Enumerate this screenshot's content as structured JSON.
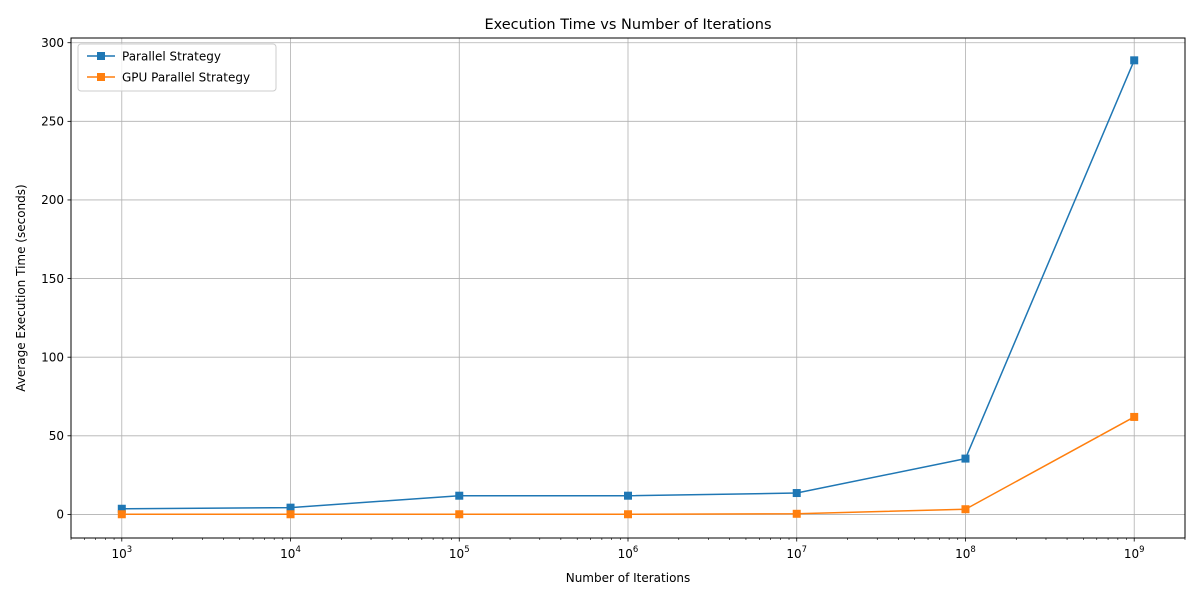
{
  "chart_data": {
    "type": "line",
    "title": "Execution Time vs Number of Iterations",
    "xlabel": "Number of Iterations",
    "ylabel": "Average Execution Time (seconds)",
    "x_scale": "log",
    "x": [
      1000,
      10000,
      100000,
      1000000,
      10000000,
      100000000,
      1000000000
    ],
    "x_tick_labels": [
      {
        "base": "10",
        "exp": "3"
      },
      {
        "base": "10",
        "exp": "4"
      },
      {
        "base": "10",
        "exp": "5"
      },
      {
        "base": "10",
        "exp": "6"
      },
      {
        "base": "10",
        "exp": "7"
      },
      {
        "base": "10",
        "exp": "8"
      },
      {
        "base": "10",
        "exp": "9"
      }
    ],
    "y_ticks": [
      "0",
      "50",
      "100",
      "150",
      "200",
      "250",
      "300"
    ],
    "xlim": [
      500,
      2000000000
    ],
    "ylim": [
      -15,
      303
    ],
    "grid": true,
    "legend_position": "top-left",
    "series": [
      {
        "name": "Parallel Strategy",
        "color": "#1f77b4",
        "marker": "square",
        "values": [
          3.6,
          4.3,
          11.9,
          11.9,
          13.6,
          35.5,
          288.8
        ]
      },
      {
        "name": "GPU Parallel Strategy",
        "color": "#ff7f0e",
        "marker": "square",
        "values": [
          0.1,
          0.1,
          0.1,
          0.1,
          0.4,
          3.3,
          62.0
        ]
      }
    ]
  }
}
